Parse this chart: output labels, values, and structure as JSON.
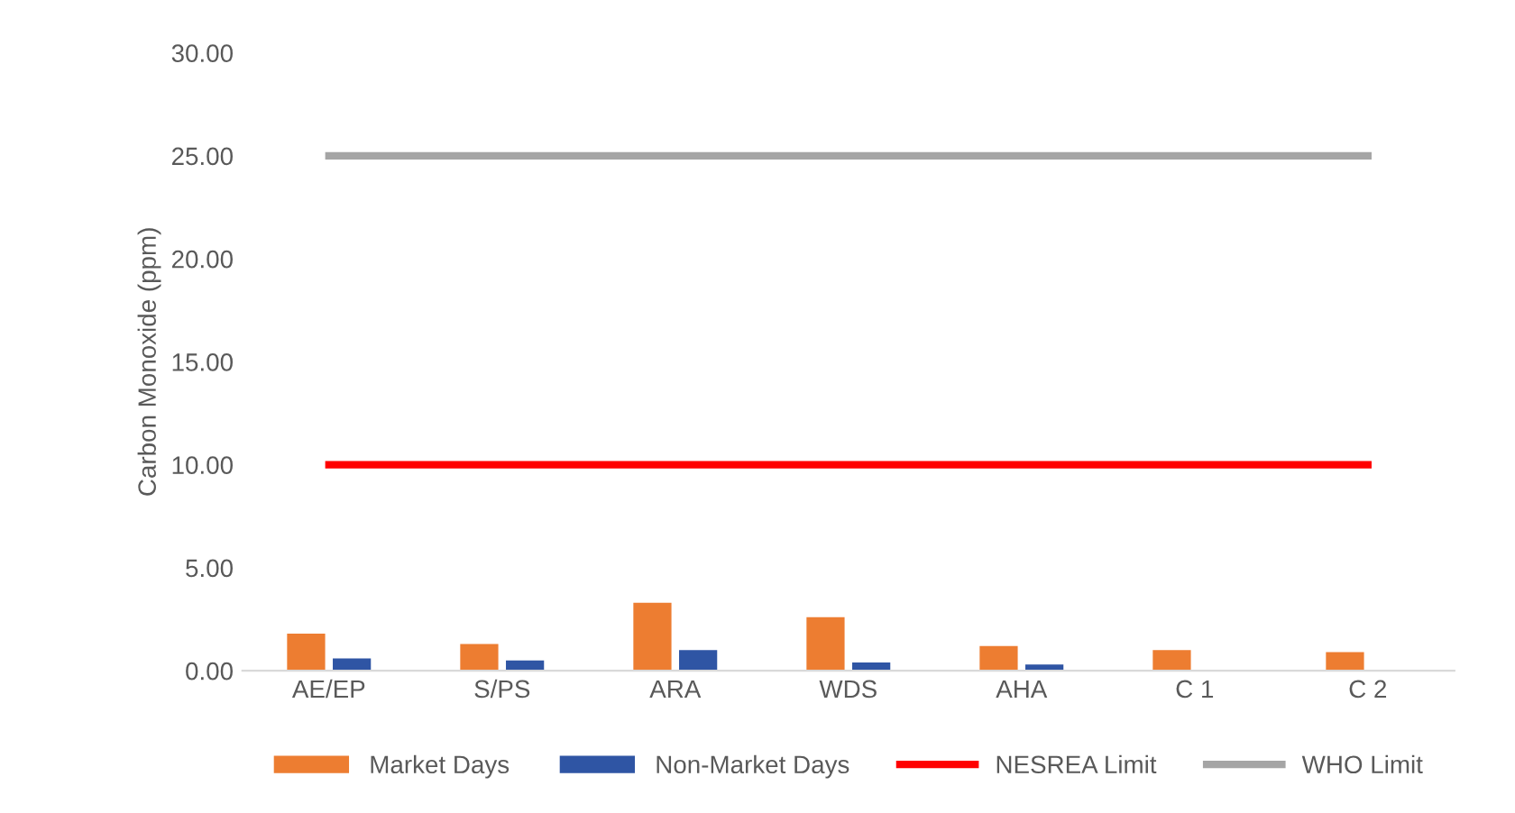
{
  "chart_data": {
    "type": "bar",
    "ylabel": "Carbon Monoxide (ppm)",
    "categories": [
      "AE/EP",
      "S/PS",
      "ARA",
      "WDS",
      "AHA",
      "C 1",
      "C 2"
    ],
    "series": [
      {
        "name": "Market Days",
        "color": "#ed7d31",
        "values": [
          1.8,
          1.3,
          3.3,
          2.6,
          1.2,
          1.0,
          0.9
        ]
      },
      {
        "name": "Non-Market Days",
        "color": "#2f55a4",
        "values": [
          0.6,
          0.5,
          1.0,
          0.4,
          0.3,
          null,
          null
        ]
      },
      {
        "name": "NESREA Limit",
        "type": "line",
        "color": "#ff0000",
        "values": [
          10,
          10,
          10,
          10,
          10,
          10,
          10
        ]
      },
      {
        "name": "WHO Limit",
        "type": "line",
        "color": "#a5a5a5",
        "values": [
          25,
          25,
          25,
          25,
          25,
          25,
          25
        ]
      }
    ],
    "ylim": [
      0,
      30
    ],
    "yticks": [
      {
        "value": 0,
        "label": "0.00"
      },
      {
        "value": 5,
        "label": "5.00"
      },
      {
        "value": 10,
        "label": "10.00"
      },
      {
        "value": 15,
        "label": "15.00"
      },
      {
        "value": 20,
        "label": "20.00"
      },
      {
        "value": 25,
        "label": "25.00"
      },
      {
        "value": 30,
        "label": "30.00"
      }
    ],
    "grid": false,
    "legend": "bottom"
  }
}
